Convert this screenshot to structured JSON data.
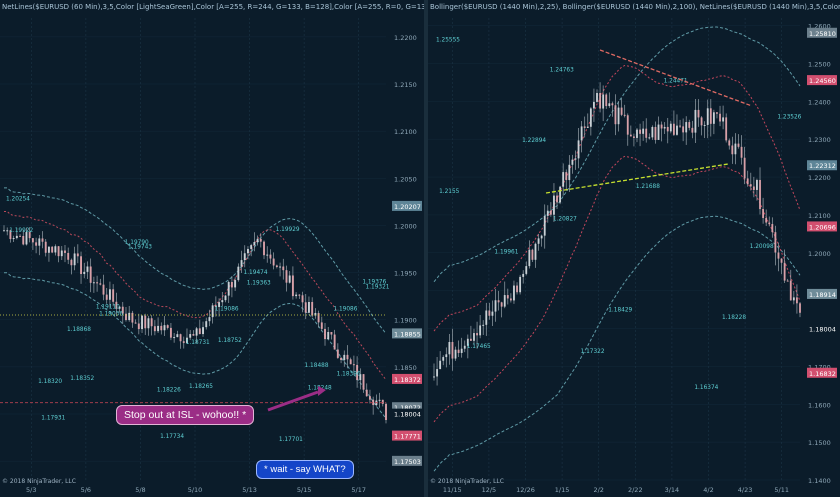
{
  "left_panel": {
    "header": "NetLines($EURUSD (60 Min),3,5,Color [LightSeaGreen],Color [A=255, R=244, G=133, B=128],Color [A=255, R=0, G=131",
    "copyright": "© 2018 NinjaTrader, LLC",
    "callout_stop": "Stop out at ISL - wohoo!! *",
    "callout_wait": "* wait - say WHAT?",
    "price_tags": [
      {
        "label": "1.20207",
        "value": 1.20207,
        "color": "#5e8597"
      },
      {
        "label": "1.18855",
        "value": 1.18855,
        "color": "#6f8c99"
      },
      {
        "label": "1.18372",
        "value": 1.18372,
        "color": "#d24f6f"
      },
      {
        "label": "1.18072",
        "value": 1.18072,
        "color": "#6b7f8c"
      },
      {
        "label": "1.18004",
        "value": 1.18004,
        "color": "#ffffff"
      },
      {
        "label": "1.17771",
        "value": 1.17771,
        "color": "#d24f6f"
      },
      {
        "label": "1.17503",
        "value": 1.17503,
        "color": "#6b7f8c"
      }
    ]
  },
  "right_panel": {
    "header": "Bollinger($EURUSD (1440 Min),2,25), Bollinger($EURUSD (1440 Min),2,100), NetLines($EURUSD (1440 Min),3,5,Color",
    "copyright": "© 2018 NinjaTrader, LLC",
    "price_tags": [
      {
        "label": "1.25810",
        "value": 1.2581,
        "color": "#6b7f8c"
      },
      {
        "label": "1.24560",
        "value": 1.2456,
        "color": "#d24f6f"
      },
      {
        "label": "1.22312",
        "value": 1.22312,
        "color": "#5e8597"
      },
      {
        "label": "1.20696",
        "value": 1.20696,
        "color": "#d24f6f"
      },
      {
        "label": "1.18914",
        "value": 1.18914,
        "color": "#6f8c99"
      },
      {
        "label": "1.18004",
        "value": 1.18004,
        "color": "#ffffff"
      },
      {
        "label": "1.16832",
        "value": 1.16832,
        "color": "#d24f6f"
      }
    ]
  },
  "chart_data": [
    {
      "type": "candlestick",
      "instrument": "$EURUSD (60 Min)",
      "ylim": [
        1.173,
        1.222
      ],
      "y_ticks": [
        "1.2200",
        "1.2150",
        "1.2100",
        "1.2050",
        "1.2000",
        "1.1950",
        "1.1900",
        "1.1850",
        "1.1800",
        "1.1750"
      ],
      "x_ticks": [
        "5/3",
        "5/6",
        "5/8",
        "5/10",
        "5/13",
        "5/15",
        "5/17"
      ],
      "series": [
        {
          "x": [
            "5/3",
            "5/6",
            "5/8",
            "5/10",
            "5/13",
            "5/15",
            "5/17"
          ],
          "values": [
            1.1995,
            1.197,
            1.19,
            1.188,
            1.1985,
            1.189,
            1.18
          ]
        }
      ],
      "annotations": [
        "1.20254",
        "1.19790",
        "1.19474",
        "1.19376",
        "1.19110",
        "1.19086",
        "1.19086",
        "1.18868",
        "1.18731",
        "1.18488",
        "1.18320",
        "1.18226",
        "1.19929",
        "1.19922",
        "1.19743",
        "1.19363",
        "1.19321",
        "1.19036",
        "1.18752",
        "1.18396",
        "1.18352",
        "1.18265",
        "1.18248",
        "1.17931",
        "1.17734",
        "1.17701"
      ],
      "horizontal_lines": [
        {
          "value": 1.1905,
          "style": "dotted",
          "color": "#d7d94a"
        },
        {
          "value": 1.1812,
          "style": "dashed",
          "color": "#b6414f"
        }
      ]
    },
    {
      "type": "candlestick",
      "instrument": "$EURUSD (1440 Min)",
      "ylim": [
        1.14,
        1.262
      ],
      "y_ticks": [
        "1.2600",
        "1.2500",
        "1.2400",
        "1.2300",
        "1.2200",
        "1.2100",
        "1.2000",
        "1.1900",
        "1.1800",
        "1.1700",
        "1.1600",
        "1.1500",
        "1.1400"
      ],
      "x_ticks": [
        "11/15",
        "12/5",
        "12/26",
        "1/15",
        "2/2",
        "2/22",
        "3/14",
        "4/2",
        "4/23",
        "5/11"
      ],
      "series": [
        {
          "x": [
            "11/15",
            "12/5",
            "12/26",
            "1/15",
            "2/2",
            "2/22",
            "3/14",
            "4/2",
            "4/23",
            "5/11"
          ],
          "values": [
            1.17,
            1.18,
            1.19,
            1.215,
            1.242,
            1.23,
            1.234,
            1.236,
            1.215,
            1.183
          ]
        }
      ],
      "annotations": [
        "1.25555",
        "1.24763",
        "1.24471",
        "1.23526",
        "1.22894",
        "1.21688",
        "1.20098",
        "1.19961",
        "1.18429",
        "1.18228",
        "1.17465",
        "1.17322",
        "1.16374",
        "1.2155",
        "1.20827"
      ],
      "trendlines": [
        {
          "name": "resistance",
          "color": "#e06a63"
        },
        {
          "name": "support",
          "color": "#c6e02f"
        }
      ]
    }
  ]
}
